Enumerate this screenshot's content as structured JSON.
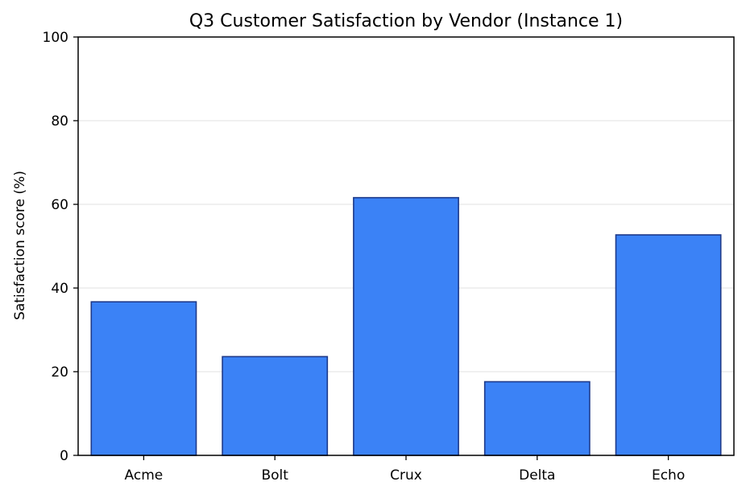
{
  "chart_data": {
    "type": "bar",
    "title": "Q3 Customer Satisfaction by Vendor (Instance 1)",
    "xlabel": "",
    "ylabel": "Satisfaction score (%)",
    "categories": [
      "Acme",
      "Bolt",
      "Crux",
      "Delta",
      "Echo"
    ],
    "values": [
      36.7,
      23.6,
      61.6,
      17.6,
      52.7
    ],
    "ylim": [
      0,
      100
    ],
    "yticks": [
      0,
      20,
      40,
      60,
      80,
      100
    ],
    "ytick_labels": [
      "0",
      "20",
      "40",
      "60",
      "80",
      "100"
    ],
    "grid": "y-only",
    "legend": "none",
    "colors": {
      "bar_fill": "#3b82f6",
      "bar_edge": "#1e3a8a"
    }
  }
}
